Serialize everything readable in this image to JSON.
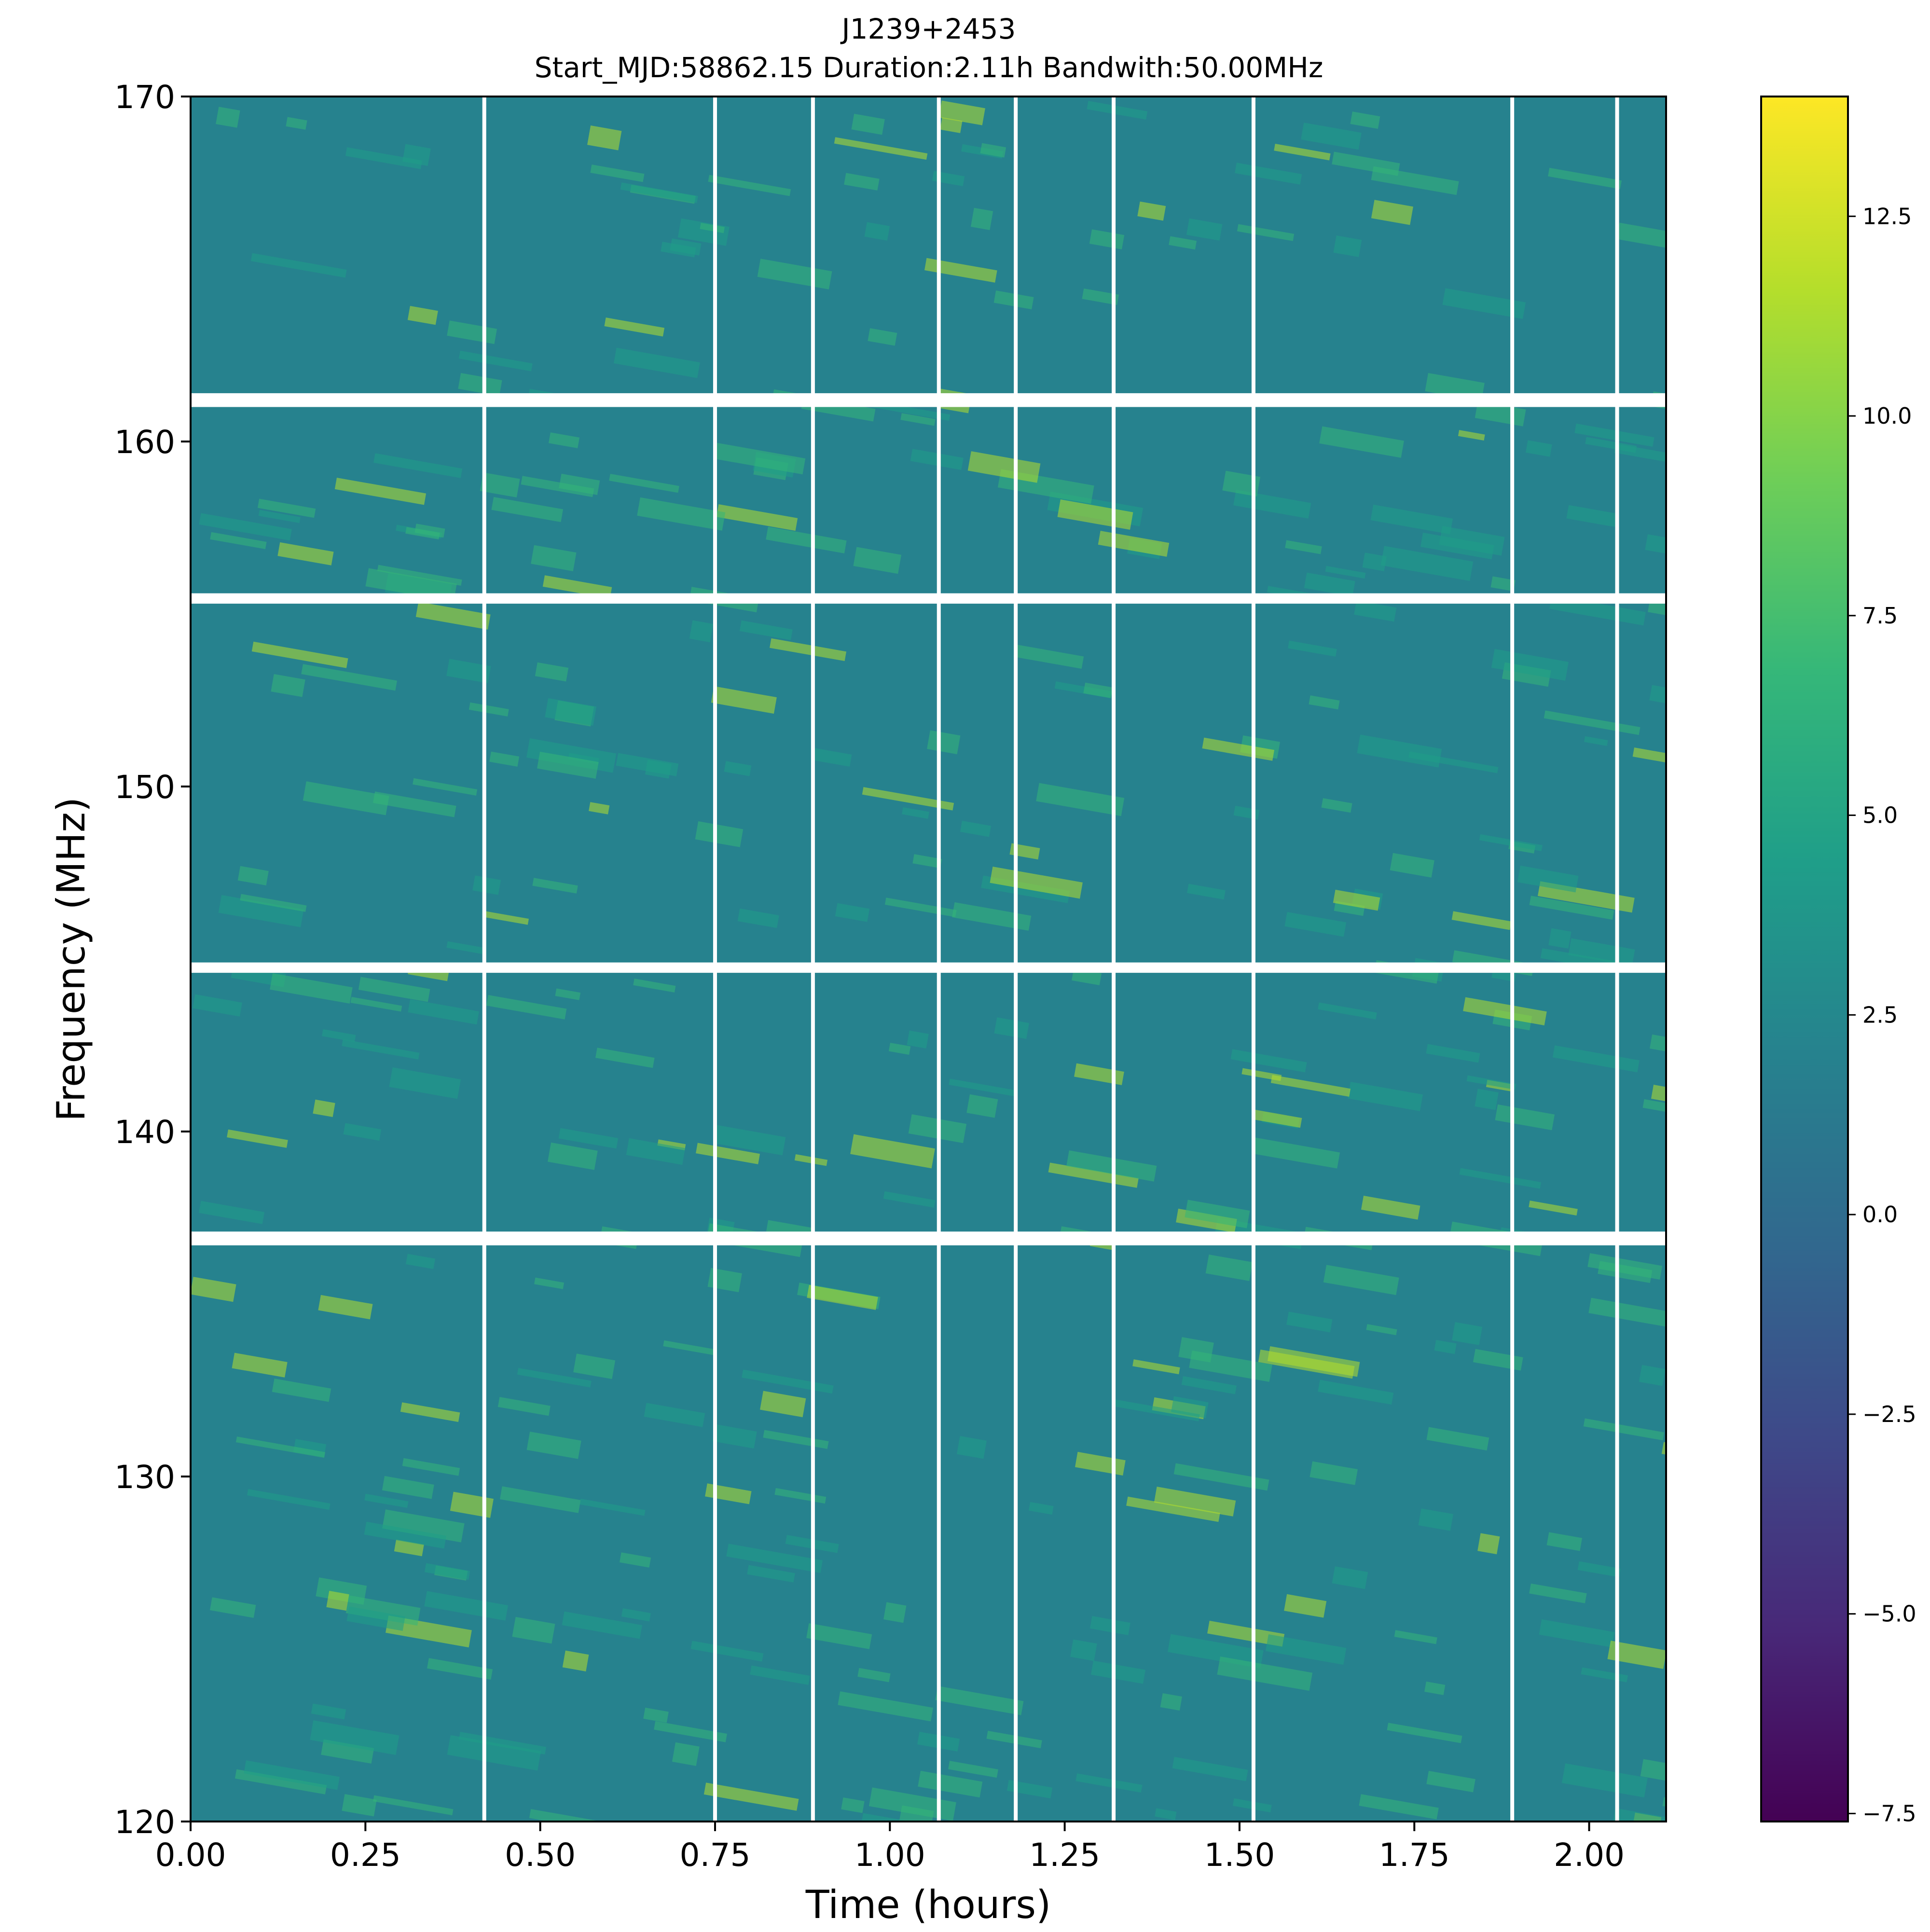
{
  "chart_data": {
    "type": "heatmap",
    "title": "J1239+2453",
    "subtitle": "Start_MJD:58862.15  Duration:2.11h  Bandwith:50.00MHz",
    "xlabel": "Time (hours)",
    "ylabel": "Frequency (MHz)",
    "xlim": [
      0.0,
      2.11
    ],
    "ylim": [
      120,
      170
    ],
    "xticks": [
      {
        "value": 0.0,
        "label": "0.00"
      },
      {
        "value": 0.25,
        "label": "0.25"
      },
      {
        "value": 0.5,
        "label": "0.50"
      },
      {
        "value": 0.75,
        "label": "0.75"
      },
      {
        "value": 1.0,
        "label": "1.00"
      },
      {
        "value": 1.25,
        "label": "1.25"
      },
      {
        "value": 1.5,
        "label": "1.50"
      },
      {
        "value": 1.75,
        "label": "1.75"
      },
      {
        "value": 2.0,
        "label": "2.00"
      }
    ],
    "yticks": [
      {
        "value": 120,
        "label": "120"
      },
      {
        "value": 130,
        "label": "130"
      },
      {
        "value": 140,
        "label": "140"
      },
      {
        "value": 150,
        "label": "150"
      },
      {
        "value": 160,
        "label": "160"
      },
      {
        "value": 170,
        "label": "170"
      }
    ],
    "colorbar": {
      "colormap": "viridis",
      "range": [
        -7.6,
        14.0
      ],
      "ticks": [
        {
          "value": -7.5,
          "label": "−7.5"
        },
        {
          "value": -5.0,
          "label": "−5.0"
        },
        {
          "value": -2.5,
          "label": "−2.5"
        },
        {
          "value": 0.0,
          "label": "0.0"
        },
        {
          "value": 2.5,
          "label": "2.5"
        },
        {
          "value": 5.0,
          "label": "5.0"
        },
        {
          "value": 7.5,
          "label": "7.5"
        },
        {
          "value": 10.0,
          "label": "10.0"
        },
        {
          "value": 12.5,
          "label": "12.5"
        }
      ],
      "colors": [
        "#440154",
        "#482878",
        "#3e4989",
        "#31688e",
        "#26828e",
        "#1f9e89",
        "#35b779",
        "#6ece58",
        "#b5de2b",
        "#fde725"
      ]
    },
    "masked_frequency_bands_mhz": [
      [
        161.0,
        161.4
      ],
      [
        155.3,
        155.6
      ],
      [
        144.6,
        144.9
      ],
      [
        136.7,
        137.1
      ]
    ],
    "masked_time_columns_hours": [
      0.42,
      0.75,
      0.89,
      1.07,
      1.18,
      1.32,
      1.52,
      1.89,
      2.04
    ],
    "background_color": "#26828e",
    "scintle_color": "#b5de2b"
  }
}
